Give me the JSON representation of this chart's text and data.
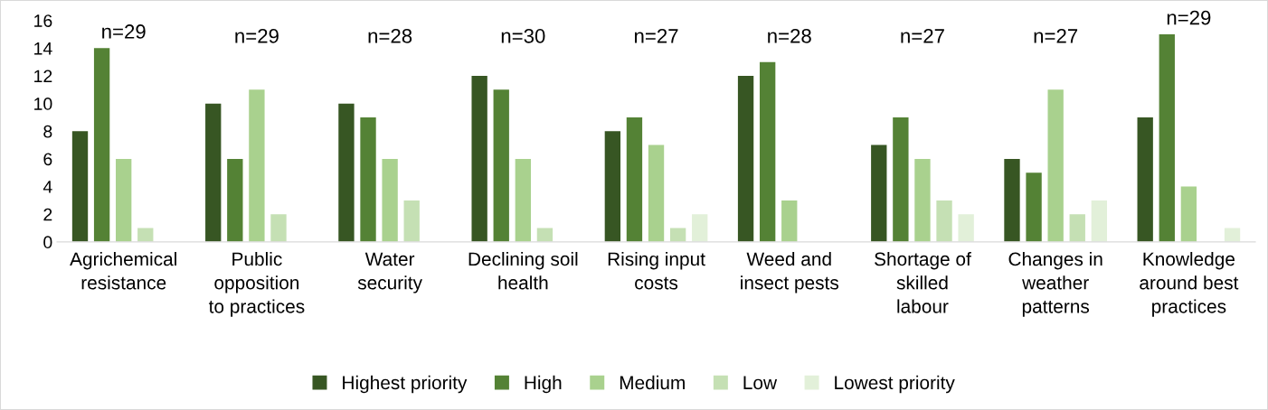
{
  "chart_data": {
    "type": "bar",
    "categories": [
      "Agrichemical\nresistance",
      "Public\nopposition\nto practices",
      "Water\nsecurity",
      "Declining soil\nhealth",
      "Rising input\ncosts",
      "Weed and\ninsect pests",
      "Shortage of\nskilled\nlabour",
      "Changes in\nweather\npatterns",
      "Knowledge\naround best\npractices"
    ],
    "series": [
      {
        "name": "Highest priority",
        "color": "#375623",
        "values": [
          8,
          10,
          10,
          12,
          8,
          12,
          7,
          6,
          9
        ]
      },
      {
        "name": "High",
        "color": "#548235",
        "values": [
          14,
          6,
          9,
          11,
          9,
          13,
          9,
          5,
          15
        ]
      },
      {
        "name": "Medium",
        "color": "#a9d18e",
        "values": [
          6,
          11,
          6,
          6,
          7,
          3,
          6,
          11,
          4
        ]
      },
      {
        "name": "Low",
        "color": "#c5e0b4",
        "values": [
          1,
          2,
          3,
          1,
          1,
          0,
          3,
          2,
          0
        ]
      },
      {
        "name": "Lowest priority",
        "color": "#e2f0d9",
        "values": [
          0,
          0,
          0,
          0,
          2,
          0,
          2,
          3,
          1
        ]
      }
    ],
    "ylim": [
      0,
      16
    ],
    "yticks": [
      0,
      2,
      4,
      6,
      8,
      10,
      12,
      14,
      16
    ],
    "grid": false,
    "legend": "bottom",
    "annotations": [
      "n=29",
      "n=29",
      "n=28",
      "n=30",
      "n=27",
      "n=28",
      "n=27",
      "n=27",
      "n=29"
    ]
  }
}
